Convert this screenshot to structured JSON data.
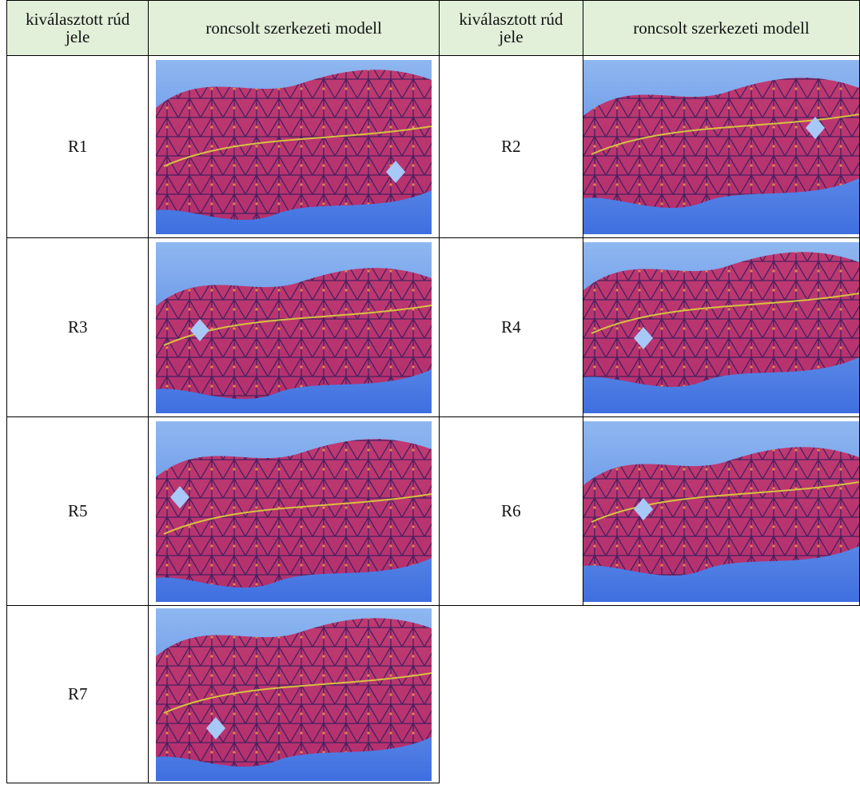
{
  "header": {
    "columns": [
      "kiválasztott rúd jele",
      "roncsolt szerkezeti modell",
      "kiválasztott rúd jele",
      "roncsolt szerkezeti modell"
    ]
  },
  "table": {
    "rows": [
      [
        "R1",
        "R2"
      ],
      [
        "R3",
        "R4"
      ],
      [
        "R5",
        "R6"
      ],
      [
        "R7"
      ]
    ]
  }
}
